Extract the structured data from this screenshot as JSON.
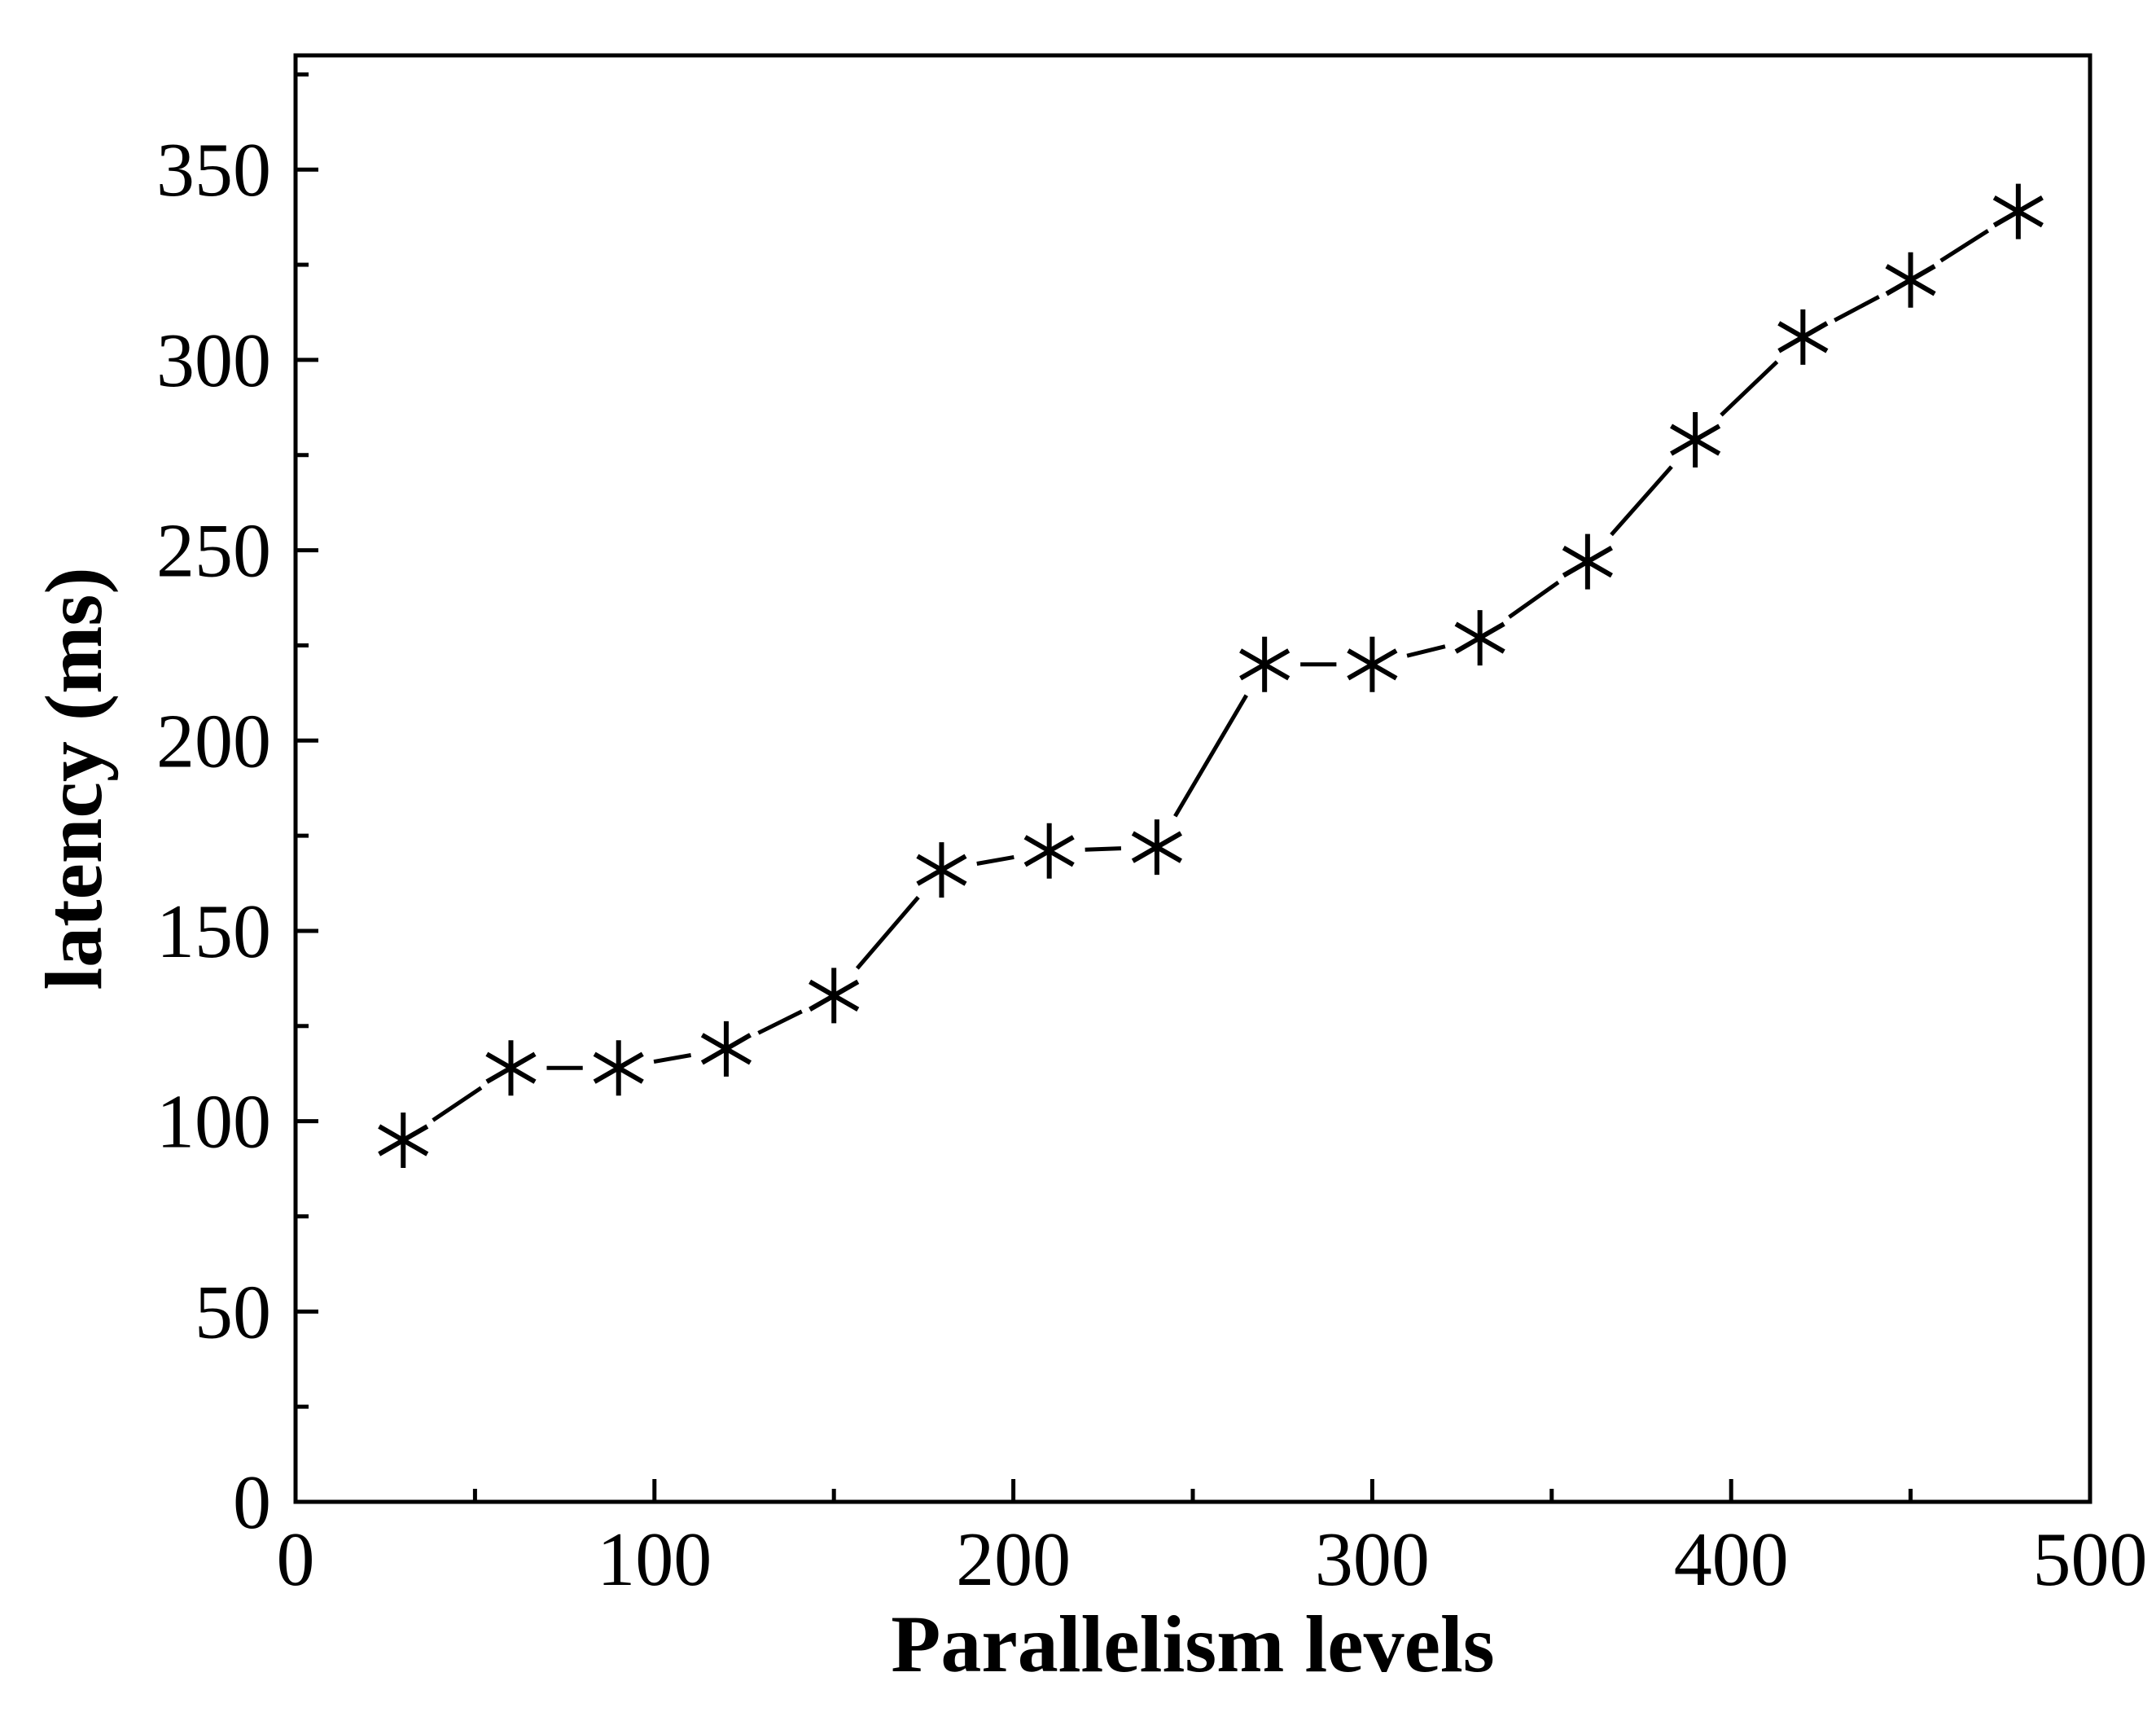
{
  "chart_data": {
    "type": "line",
    "title": "",
    "xlabel": "Parallelism levels",
    "ylabel": "latency (ms)",
    "xlim": [
      0,
      500
    ],
    "ylim": [
      0,
      380
    ],
    "x_ticks": [
      0,
      100,
      200,
      300,
      400,
      500
    ],
    "y_ticks": [
      0,
      50,
      100,
      150,
      200,
      250,
      300,
      350
    ],
    "x_minor_step": 50,
    "y_minor_step": 25,
    "grid": false,
    "legend": "none",
    "marker": "asterisk",
    "line_color": "#000000",
    "series": [
      {
        "x": [
          30,
          60,
          90,
          120,
          150,
          180,
          210,
          240,
          270,
          300,
          330,
          360,
          390,
          420,
          450,
          480
        ],
        "y": [
          95,
          114,
          114,
          119,
          133,
          166,
          171,
          172,
          220,
          220,
          227,
          247,
          279,
          306,
          321,
          339
        ]
      }
    ]
  }
}
